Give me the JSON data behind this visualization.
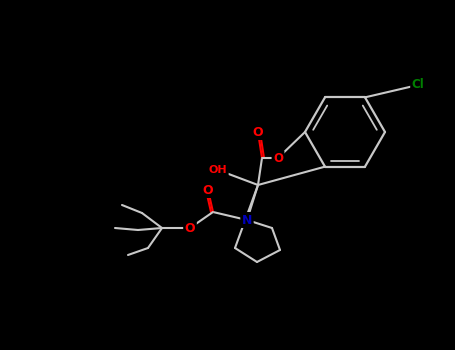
{
  "background_color": "#000000",
  "bond_color": "#c8c8c8",
  "atom_colors": {
    "O": "#ff0000",
    "N": "#0000bb",
    "Cl": "#008000",
    "C": "#c8c8c8"
  },
  "figsize": [
    4.55,
    3.5
  ],
  "dpi": 100
}
